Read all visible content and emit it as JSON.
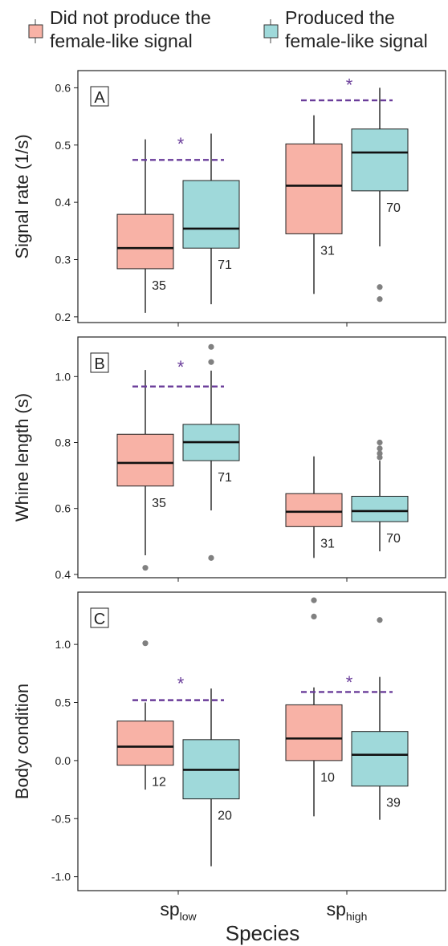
{
  "legend": {
    "items": [
      {
        "label_line1": "Did not produce the",
        "label_line2": "female-like signal",
        "color": "#f8b2a6"
      },
      {
        "label_line1": "Produced the",
        "label_line2": "female-like signal",
        "color": "#9fd9da"
      }
    ]
  },
  "colors": {
    "not_produced": "#f8b2a6",
    "produced": "#9fd9da",
    "significance": "#6a3d9a",
    "outlier": "#808080"
  },
  "xaxis": {
    "title": "Species",
    "categories": [
      {
        "base": "sp",
        "sub": "low"
      },
      {
        "base": "sp",
        "sub": "high"
      }
    ]
  },
  "chart_data": [
    {
      "panel": "A",
      "type": "box",
      "ylabel": "Signal rate (1/s)",
      "ylim": [
        0.19,
        0.63
      ],
      "yticks": [
        "0.2",
        "0.3",
        "0.4",
        "0.5",
        "0.6"
      ],
      "yticks_values": [
        0.2,
        0.3,
        0.4,
        0.5,
        0.6
      ],
      "groups": [
        {
          "category": "sp_low",
          "boxes": [
            {
              "series": "not_produced",
              "whisker_low": 0.207,
              "q1": 0.284,
              "median": 0.32,
              "q3": 0.379,
              "whisker_high": 0.51,
              "outliers": [],
              "n": "35"
            },
            {
              "series": "produced",
              "whisker_low": 0.222,
              "q1": 0.32,
              "median": 0.354,
              "q3": 0.438,
              "whisker_high": 0.52,
              "outliers": [],
              "n": "71"
            }
          ],
          "significance": {
            "y": 0.474,
            "star_y": 0.505,
            "label": "*"
          }
        },
        {
          "category": "sp_high",
          "boxes": [
            {
              "series": "not_produced",
              "whisker_low": 0.24,
              "q1": 0.345,
              "median": 0.429,
              "q3": 0.502,
              "whisker_high": 0.552,
              "outliers": [],
              "n": "31"
            },
            {
              "series": "produced",
              "whisker_low": 0.323,
              "q1": 0.42,
              "median": 0.487,
              "q3": 0.528,
              "whisker_high": 0.6,
              "outliers": [
                0.252,
                0.231
              ],
              "n": "70"
            }
          ],
          "significance": {
            "y": 0.578,
            "star_y": 0.608,
            "label": "*"
          }
        }
      ]
    },
    {
      "panel": "B",
      "type": "box",
      "ylabel": "Whine length (s)",
      "ylim": [
        0.39,
        1.12
      ],
      "yticks": [
        "0.4",
        "0.6",
        "0.8",
        "1.0"
      ],
      "yticks_values": [
        0.4,
        0.6,
        0.8,
        1.0
      ],
      "groups": [
        {
          "category": "sp_low",
          "boxes": [
            {
              "series": "not_produced",
              "whisker_low": 0.458,
              "q1": 0.668,
              "median": 0.738,
              "q3": 0.825,
              "whisker_high": 1.02,
              "outliers": [
                0.42
              ],
              "n": "35"
            },
            {
              "series": "produced",
              "whisker_low": 0.594,
              "q1": 0.745,
              "median": 0.801,
              "q3": 0.855,
              "whisker_high": 1.018,
              "outliers": [
                1.09,
                1.044,
                0.45
              ],
              "n": "71"
            }
          ],
          "significance": {
            "y": 0.97,
            "star_y": 1.035,
            "label": "*"
          }
        },
        {
          "category": "sp_high",
          "boxes": [
            {
              "series": "not_produced",
              "whisker_low": 0.45,
              "q1": 0.545,
              "median": 0.59,
              "q3": 0.645,
              "whisker_high": 0.758,
              "outliers": [],
              "n": "31"
            },
            {
              "series": "produced",
              "whisker_low": 0.47,
              "q1": 0.56,
              "median": 0.592,
              "q3": 0.637,
              "whisker_high": 0.745,
              "outliers": [
                0.8,
                0.782,
                0.767,
                0.755
              ],
              "n": "70"
            }
          ],
          "significance": null
        }
      ]
    },
    {
      "panel": "C",
      "type": "box",
      "ylabel": "Body condition",
      "ylim": [
        -1.12,
        1.45
      ],
      "yticks": [
        "-1.0",
        "-0.5",
        "0.0",
        "0.5",
        "1.0"
      ],
      "yticks_values": [
        -1.0,
        -0.5,
        0.0,
        0.5,
        1.0
      ],
      "groups": [
        {
          "category": "sp_low",
          "boxes": [
            {
              "series": "not_produced",
              "whisker_low": -0.25,
              "q1": -0.04,
              "median": 0.12,
              "q3": 0.34,
              "whisker_high": 0.5,
              "outliers": [
                1.01
              ],
              "n": "12"
            },
            {
              "series": "produced",
              "whisker_low": -0.91,
              "q1": -0.33,
              "median": -0.08,
              "q3": 0.18,
              "whisker_high": 0.62,
              "outliers": [],
              "n": "20"
            }
          ],
          "significance": {
            "y": 0.52,
            "star_y": 0.68,
            "label": "*"
          }
        },
        {
          "category": "sp_high",
          "boxes": [
            {
              "series": "not_produced",
              "whisker_low": -0.48,
              "q1": 0.0,
              "median": 0.19,
              "q3": 0.48,
              "whisker_high": 0.63,
              "outliers": [
                1.38,
                1.24
              ],
              "n": "10"
            },
            {
              "series": "produced",
              "whisker_low": -0.51,
              "q1": -0.22,
              "median": 0.05,
              "q3": 0.25,
              "whisker_high": 0.72,
              "outliers": [
                1.21
              ],
              "n": "39"
            }
          ],
          "significance": {
            "y": 0.59,
            "star_y": 0.69,
            "label": "*"
          }
        }
      ]
    }
  ]
}
